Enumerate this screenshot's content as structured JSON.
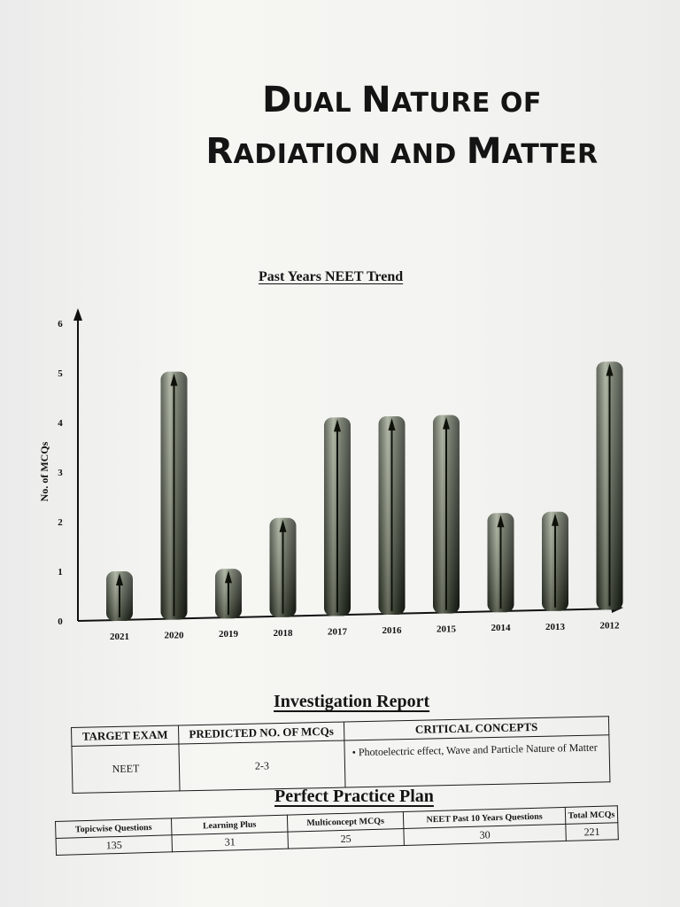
{
  "page": {
    "title_line1": [
      "D",
      "UAL ",
      "N",
      "ATURE ",
      "OF"
    ],
    "title_line2": [
      "R",
      "ADIATION AND ",
      "M",
      "ATTER"
    ]
  },
  "chart_data": {
    "type": "bar",
    "title": "Past Years NEET Trend",
    "ylabel": "No. of MCQs",
    "xlabel": "",
    "categories": [
      "2021",
      "2020",
      "2019",
      "2018",
      "2017",
      "2016",
      "2015",
      "2014",
      "2013",
      "2012"
    ],
    "values": [
      1,
      5,
      1,
      2,
      4,
      4,
      4,
      2,
      2,
      5
    ],
    "yticks": [
      "0",
      "1",
      "2",
      "3",
      "4",
      "5",
      "6"
    ],
    "ylim": [
      0,
      6
    ],
    "bar_color_dark": "#1d2417",
    "bar_color_light": "#a8b09a"
  },
  "investigation": {
    "title": "Investigation Report",
    "headers": [
      "TARGET EXAM",
      "PREDICTED NO. OF MCQs",
      "CRITICAL CONCEPTS"
    ],
    "exam": "NEET",
    "predicted": "2-3",
    "concepts": "•  Photoelectric effect, Wave and Particle Nature of Matter"
  },
  "practice_plan": {
    "title": "Perfect Practice Plan",
    "headers": [
      "Topicwise Questions",
      "Learning Plus",
      "Multiconcept MCQs",
      "NEET Past 10 Years Questions",
      "Total MCQs"
    ],
    "values": [
      "135",
      "31",
      "25",
      "30",
      "221"
    ]
  }
}
